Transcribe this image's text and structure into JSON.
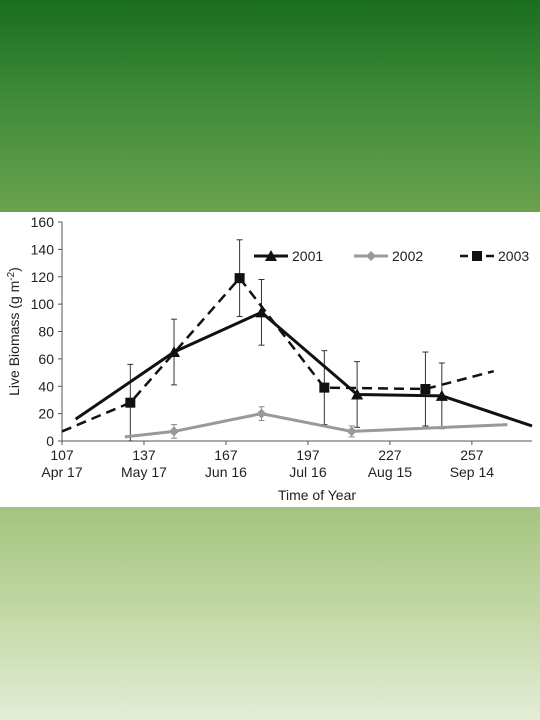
{
  "chart_data": {
    "type": "line",
    "xlabel": "Time of Year",
    "ylabel": "Live Biomass (g m-2)",
    "xlim": [
      107,
      279
    ],
    "ylim": [
      0,
      160
    ],
    "x_ticks": [
      {
        "value": 107,
        "label": "107",
        "date": "Apr  17"
      },
      {
        "value": 137,
        "label": "137",
        "date": "May 17"
      },
      {
        "value": 167,
        "label": "167",
        "date": "Jun 16"
      },
      {
        "value": 197,
        "label": "197",
        "date": "Jul 16"
      },
      {
        "value": 227,
        "label": "227",
        "date": "Aug 15"
      },
      {
        "value": 257,
        "label": "257",
        "date": "Sep 14"
      }
    ],
    "y_ticks": [
      0,
      20,
      40,
      60,
      80,
      100,
      120,
      140,
      160
    ],
    "legend_position": "top-right",
    "series": [
      {
        "name": "2001",
        "style": "solid",
        "color": "#111111",
        "marker": "triangle",
        "x": [
          112,
          148,
          180,
          215,
          246,
          279
        ],
        "y": [
          16,
          65,
          94,
          34,
          33,
          11
        ],
        "marked": [
          false,
          true,
          true,
          true,
          true,
          false
        ],
        "err": [
          null,
          24,
          24,
          24,
          24,
          null
        ]
      },
      {
        "name": "2002",
        "style": "solid",
        "color": "#999999",
        "marker": "diamond",
        "x": [
          130,
          148,
          180,
          213,
          270
        ],
        "y": [
          3,
          7,
          20,
          7,
          12
        ],
        "marked": [
          false,
          true,
          true,
          true,
          false
        ],
        "err": [
          null,
          5,
          5,
          4,
          null
        ]
      },
      {
        "name": "2003",
        "style": "dashed",
        "color": "#111111",
        "marker": "square",
        "x": [
          107,
          132,
          172,
          203,
          240,
          265
        ],
        "y": [
          7,
          28,
          119,
          39,
          38,
          51
        ],
        "marked": [
          false,
          true,
          true,
          true,
          true,
          false
        ],
        "err": [
          null,
          28,
          28,
          27,
          27,
          null
        ]
      }
    ]
  }
}
